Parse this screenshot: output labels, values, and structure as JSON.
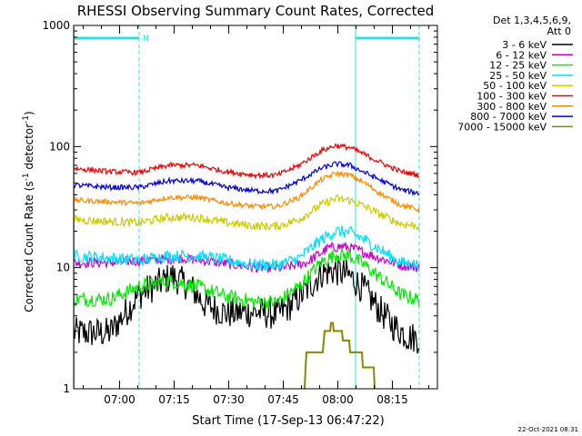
{
  "chart_data": {
    "type": "line",
    "title": "RHESSI Observing Summary Count Rates, Corrected",
    "xlabel": "Start Time (17-Sep-13 06:47:22)",
    "ylabel_main": "Corrected Count Rate (s",
    "ylabel_exp1": "-1",
    "ylabel_mid": " detector",
    "ylabel_exp2": "-1",
    "ylabel_end": ")",
    "yscale": "log",
    "ylim": [
      1,
      1000
    ],
    "xlim_minutes": [
      0,
      100
    ],
    "x_ticks": [
      {
        "minute": 12.63,
        "label": "07:00"
      },
      {
        "minute": 27.63,
        "label": "07:15"
      },
      {
        "minute": 42.63,
        "label": "07:30"
      },
      {
        "minute": 57.63,
        "label": "07:45"
      },
      {
        "minute": 72.63,
        "label": "08:00"
      },
      {
        "minute": 87.63,
        "label": "08:15"
      }
    ],
    "y_ticks": [
      {
        "value": 1,
        "label": "1"
      },
      {
        "value": 10,
        "label": "10"
      },
      {
        "value": 100,
        "label": "100"
      },
      {
        "value": 1000,
        "label": "1000"
      }
    ],
    "legend": {
      "placement": "right",
      "header1": "Det 1,3,4,5,6,9,",
      "header2": "Att 0"
    },
    "annotation": "N",
    "night_intervals": [
      [
        0,
        18
      ],
      [
        77.5,
        95
      ]
    ],
    "series": [
      {
        "name": "3 - 6 keV",
        "color": "#000000",
        "x": [
          0,
          10,
          18,
          22,
          27,
          32,
          36,
          42,
          50,
          56,
          60,
          64,
          68,
          72,
          76,
          80,
          84,
          88,
          92,
          95
        ],
        "y": [
          2.9,
          2.9,
          6.0,
          7.0,
          8.5,
          7.0,
          5.0,
          4.2,
          4.3,
          4.1,
          5.0,
          6.5,
          9.0,
          9.5,
          8.5,
          6.5,
          4.5,
          3.3,
          2.7,
          2.6
        ]
      },
      {
        "name": "6 - 12 keV",
        "color": "#cc00cc",
        "x": [
          0,
          10,
          20,
          30,
          40,
          50,
          58,
          64,
          70,
          74,
          78,
          84,
          90,
          95
        ],
        "y": [
          11,
          11,
          11.5,
          12,
          11,
          10,
          10,
          11,
          14.5,
          15,
          14,
          12,
          10.5,
          10
        ]
      },
      {
        "name": "12 - 25 keV",
        "color": "#00ee00",
        "x": [
          0,
          10,
          18,
          26,
          34,
          42,
          50,
          56,
          62,
          68,
          72,
          76,
          80,
          86,
          90,
          95
        ],
        "y": [
          5.5,
          5.5,
          7.0,
          7.8,
          7.0,
          5.8,
          5.2,
          5.2,
          7.0,
          11.0,
          12.8,
          12.5,
          10.5,
          7.5,
          6.0,
          5.4
        ]
      },
      {
        "name": "25 - 50 keV",
        "color": "#00e0ff",
        "x": [
          0,
          10,
          18,
          26,
          34,
          42,
          50,
          56,
          62,
          68,
          72,
          76,
          80,
          86,
          90,
          95
        ],
        "y": [
          12.5,
          12,
          11.5,
          12.5,
          12.5,
          11.5,
          10.5,
          10.5,
          12,
          17,
          20,
          19.5,
          17,
          13,
          11,
          10.5
        ]
      },
      {
        "name": "50 - 100 keV",
        "color": "#cccc00",
        "x": [
          0,
          10,
          18,
          26,
          34,
          42,
          50,
          56,
          62,
          68,
          72,
          76,
          80,
          86,
          90,
          95
        ],
        "y": [
          25,
          24,
          23.5,
          26,
          26,
          23.5,
          22,
          22,
          25,
          33,
          37,
          36,
          32,
          26,
          23,
          22
        ]
      },
      {
        "name": "100 - 300 keV",
        "color": "#ee0000",
        "x": [
          0,
          10,
          18,
          26,
          34,
          42,
          50,
          56,
          62,
          68,
          72,
          76,
          80,
          86,
          90,
          95
        ],
        "y": [
          66,
          62,
          61,
          70,
          70,
          62,
          58,
          58,
          70,
          92,
          102,
          98,
          86,
          70,
          62,
          58
        ]
      },
      {
        "name": "300 - 800 keV",
        "color": "#ff8800",
        "x": [
          0,
          10,
          18,
          26,
          34,
          42,
          50,
          56,
          62,
          68,
          72,
          76,
          80,
          86,
          90,
          95
        ],
        "y": [
          36,
          35,
          34,
          38,
          38,
          34,
          32,
          32,
          38,
          53,
          60,
          58,
          50,
          38,
          33,
          30
        ]
      },
      {
        "name": "800 - 7000 keV",
        "color": "#0000dd",
        "x": [
          0,
          10,
          18,
          26,
          34,
          42,
          50,
          56,
          62,
          68,
          72,
          76,
          80,
          86,
          90,
          95
        ],
        "y": [
          48,
          46,
          46,
          52,
          52,
          46,
          43,
          43,
          52,
          66,
          72,
          70,
          61,
          50,
          44,
          41
        ]
      },
      {
        "name": "7000 - 15000 keV",
        "color": "#888800",
        "x": [
          63.5,
          64,
          66,
          68.5,
          69,
          71,
          73,
          75,
          77,
          79,
          81,
          82.5,
          83
        ],
        "y": [
          1.0,
          1.8,
          2.0,
          2.0,
          3.0,
          3.3,
          3.0,
          2.5,
          2.0,
          1.8,
          1.5,
          1.5,
          1.0
        ]
      }
    ],
    "footer_timestamp": "22-Oct-2021 08:31"
  }
}
